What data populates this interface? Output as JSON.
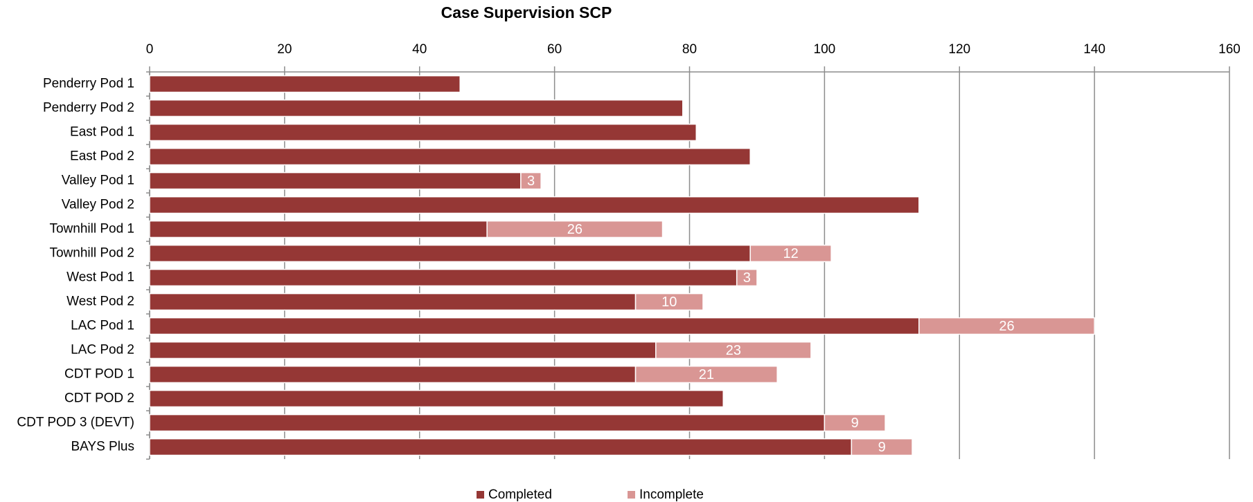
{
  "chart_data": {
    "type": "bar",
    "orientation": "horizontal",
    "stacked": true,
    "title": "Case Supervision SCP",
    "categories": [
      "Penderry Pod 1",
      "Penderry Pod 2",
      "East Pod 1",
      "East Pod 2",
      "Valley Pod 1",
      "Valley Pod 2",
      "Townhill Pod 1",
      "Townhill Pod 2",
      "West Pod 1",
      "West Pod 2",
      "LAC Pod 1",
      "LAC Pod 2",
      "CDT POD 1",
      "CDT POD 2",
      "CDT POD 3 (DEVT)",
      "BAYS Plus"
    ],
    "series": [
      {
        "name": "Completed",
        "color": "#953735",
        "values": [
          46,
          79,
          81,
          89,
          55,
          114,
          50,
          89,
          87,
          72,
          114,
          75,
          72,
          85,
          100,
          104
        ]
      },
      {
        "name": "Incomplete",
        "color": "#d99694",
        "values": [
          null,
          null,
          null,
          null,
          3,
          null,
          26,
          12,
          3,
          10,
          26,
          23,
          21,
          null,
          9,
          9
        ],
        "show_labels": true
      }
    ],
    "xlim": [
      0,
      160
    ],
    "xticks": [
      0,
      20,
      40,
      60,
      80,
      100,
      120,
      140,
      160
    ],
    "grid": true,
    "legend": "bottom"
  }
}
